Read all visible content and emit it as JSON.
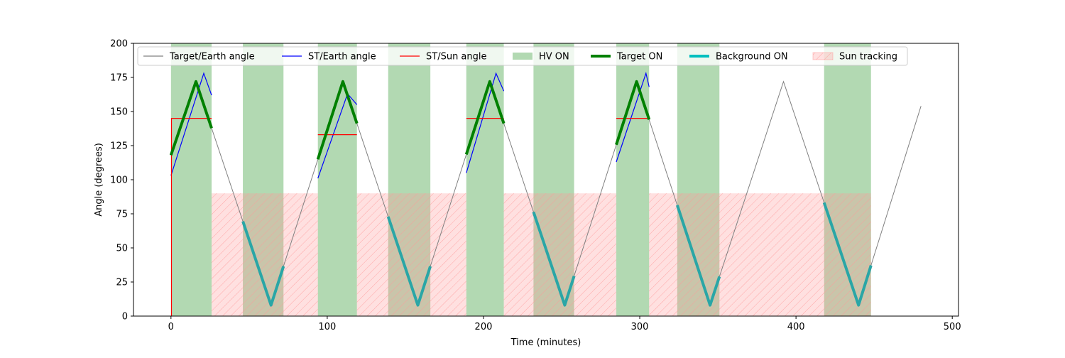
{
  "chart_data": {
    "type": "line",
    "xlabel": "Time (minutes)",
    "ylabel": "Angle (degrees)",
    "xlim": [
      -24,
      504
    ],
    "ylim": [
      0,
      200
    ],
    "x_ticks": [
      0,
      100,
      200,
      300,
      400,
      500
    ],
    "y_ticks": [
      0,
      25,
      50,
      75,
      100,
      125,
      150,
      175,
      200
    ],
    "grid": false,
    "legend_position": "top-center",
    "legend": [
      {
        "label": "Target/Earth angle",
        "kind": "line",
        "color": "#808080"
      },
      {
        "label": "ST/Earth angle",
        "kind": "line",
        "color": "#0000ff"
      },
      {
        "label": "ST/Sun angle",
        "kind": "line",
        "color": "#ff0000"
      },
      {
        "label": "HV ON",
        "kind": "patch",
        "color": "#008000"
      },
      {
        "label": "Target ON",
        "kind": "thickline",
        "color": "#008000"
      },
      {
        "label": "Background ON",
        "kind": "thickline",
        "color": "#00bfbf"
      },
      {
        "label": "Sun tracking",
        "kind": "hatch",
        "color": "#ff9999"
      }
    ],
    "target_earth": {
      "name": "Target/Earth angle",
      "color": "#808080",
      "x": [
        0,
        16,
        64,
        110,
        158,
        204,
        252,
        298,
        345,
        392,
        440,
        480
      ],
      "y": [
        118,
        172,
        8,
        172,
        8,
        172,
        8,
        172,
        8,
        172,
        8,
        154
      ]
    },
    "hv_on": [
      [
        0,
        26
      ],
      [
        46,
        72
      ],
      [
        94,
        119
      ],
      [
        139,
        166
      ],
      [
        189,
        213
      ],
      [
        232,
        258
      ],
      [
        285,
        306
      ],
      [
        324,
        351
      ],
      [
        418,
        448
      ]
    ],
    "sun_tracking": {
      "y_max": 90,
      "ranges": [
        [
          26,
          94
        ],
        [
          119,
          189
        ],
        [
          213,
          285
        ],
        [
          306,
          448
        ]
      ]
    },
    "target_on": [
      [
        0,
        26
      ],
      [
        94,
        119
      ],
      [
        189,
        213
      ],
      [
        285,
        306
      ]
    ],
    "background_on": [
      [
        46,
        72
      ],
      [
        139,
        166
      ],
      [
        232,
        258
      ],
      [
        324,
        351
      ],
      [
        418,
        448
      ]
    ],
    "st_earth": {
      "name": "ST/Earth angle",
      "color": "#0000ff",
      "segments": [
        {
          "x": [
            0,
            21,
            26
          ],
          "y": [
            103,
            178,
            162
          ]
        },
        {
          "x": [
            94,
            113,
            119
          ],
          "y": [
            101,
            163,
            155
          ]
        },
        {
          "x": [
            189,
            208,
            213
          ],
          "y": [
            105,
            178,
            165
          ]
        },
        {
          "x": [
            285,
            304,
            306
          ],
          "y": [
            113,
            178,
            168
          ]
        }
      ]
    },
    "st_sun": {
      "name": "ST/Sun angle",
      "color": "#ff0000",
      "segments": [
        {
          "x": [
            0,
            0.3,
            0.3,
            26
          ],
          "y": [
            0,
            0,
            145,
            145
          ]
        },
        {
          "x": [
            94,
            119
          ],
          "y": [
            133,
            133
          ]
        },
        {
          "x": [
            189,
            213
          ],
          "y": [
            145,
            145
          ]
        },
        {
          "x": [
            285,
            306
          ],
          "y": [
            145,
            145
          ]
        }
      ]
    }
  }
}
